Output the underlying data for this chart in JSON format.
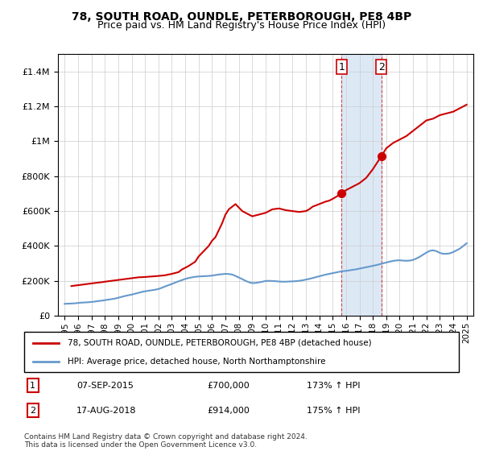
{
  "title": "78, SOUTH ROAD, OUNDLE, PETERBOROUGH, PE8 4BP",
  "subtitle": "Price paid vs. HM Land Registry's House Price Index (HPI)",
  "legend_line1": "78, SOUTH ROAD, OUNDLE, PETERBOROUGH, PE8 4BP (detached house)",
  "legend_line2": "HPI: Average price, detached house, North Northamptonshire",
  "table_rows": [
    [
      "1",
      "07-SEP-2015",
      "£700,000",
      "173% ↑ HPI"
    ],
    [
      "2",
      "17-AUG-2018",
      "£914,000",
      "175% ↑ HPI"
    ]
  ],
  "footer": "Contains HM Land Registry data © Crown copyright and database right 2024.\nThis data is licensed under the Open Government Licence v3.0.",
  "hpi_color": "#6699cc",
  "price_color": "#cc0000",
  "highlight_color": "#dce9f5",
  "dot_color": "#cc0000",
  "marker1_x": 2015.67,
  "marker2_x": 2018.63,
  "marker1_y": 700000,
  "marker2_y": 914000,
  "shade_x1": 2015.67,
  "shade_x2": 2018.63,
  "ylim": [
    0,
    1500000
  ],
  "xlim": [
    1994.5,
    2025.5
  ],
  "yticks": [
    0,
    200000,
    400000,
    600000,
    800000,
    1000000,
    1200000,
    1400000
  ],
  "xticks": [
    1995,
    1996,
    1997,
    1998,
    1999,
    2000,
    2001,
    2002,
    2003,
    2004,
    2005,
    2006,
    2007,
    2008,
    2009,
    2010,
    2011,
    2012,
    2013,
    2014,
    2015,
    2016,
    2017,
    2018,
    2019,
    2020,
    2021,
    2022,
    2023,
    2024,
    2025
  ],
  "hpi_x": [
    1995,
    1995.25,
    1995.5,
    1995.75,
    1996,
    1996.25,
    1996.5,
    1996.75,
    1997,
    1997.25,
    1997.5,
    1997.75,
    1998,
    1998.25,
    1998.5,
    1998.75,
    1999,
    1999.25,
    1999.5,
    1999.75,
    2000,
    2000.25,
    2000.5,
    2000.75,
    2001,
    2001.25,
    2001.5,
    2001.75,
    2002,
    2002.25,
    2002.5,
    2002.75,
    2003,
    2003.25,
    2003.5,
    2003.75,
    2004,
    2004.25,
    2004.5,
    2004.75,
    2005,
    2005.25,
    2005.5,
    2005.75,
    2006,
    2006.25,
    2006.5,
    2006.75,
    2007,
    2007.25,
    2007.5,
    2007.75,
    2008,
    2008.25,
    2008.5,
    2008.75,
    2009,
    2009.25,
    2009.5,
    2009.75,
    2010,
    2010.25,
    2010.5,
    2010.75,
    2011,
    2011.25,
    2011.5,
    2011.75,
    2012,
    2012.25,
    2012.5,
    2012.75,
    2013,
    2013.25,
    2013.5,
    2013.75,
    2014,
    2014.25,
    2014.5,
    2014.75,
    2015,
    2015.25,
    2015.5,
    2015.75,
    2016,
    2016.25,
    2016.5,
    2016.75,
    2017,
    2017.25,
    2017.5,
    2017.75,
    2018,
    2018.25,
    2018.5,
    2018.75,
    2019,
    2019.25,
    2019.5,
    2019.75,
    2020,
    2020.25,
    2020.5,
    2020.75,
    2021,
    2021.25,
    2021.5,
    2021.75,
    2022,
    2022.25,
    2022.5,
    2022.75,
    2023,
    2023.25,
    2023.5,
    2023.75,
    2024,
    2024.25,
    2024.5,
    2024.75,
    2025
  ],
  "hpi_y": [
    68000,
    69000,
    70000,
    71000,
    73000,
    75000,
    76000,
    77000,
    79000,
    81000,
    84000,
    86000,
    89000,
    92000,
    95000,
    98000,
    103000,
    108000,
    113000,
    117000,
    121000,
    126000,
    131000,
    136000,
    140000,
    143000,
    146000,
    149000,
    153000,
    160000,
    168000,
    175000,
    182000,
    190000,
    197000,
    204000,
    211000,
    216000,
    220000,
    223000,
    225000,
    226000,
    227000,
    228000,
    230000,
    233000,
    236000,
    238000,
    240000,
    239000,
    236000,
    228000,
    219000,
    210000,
    200000,
    192000,
    187000,
    188000,
    191000,
    195000,
    199000,
    200000,
    199000,
    198000,
    196000,
    195000,
    195000,
    196000,
    197000,
    198000,
    200000,
    203000,
    207000,
    211000,
    216000,
    221000,
    226000,
    231000,
    236000,
    240000,
    244000,
    248000,
    252000,
    255000,
    257000,
    260000,
    263000,
    266000,
    270000,
    274000,
    278000,
    282000,
    286000,
    290000,
    295000,
    300000,
    305000,
    310000,
    314000,
    317000,
    318000,
    316000,
    315000,
    316000,
    320000,
    328000,
    338000,
    350000,
    362000,
    372000,
    375000,
    370000,
    360000,
    355000,
    355000,
    358000,
    365000,
    375000,
    385000,
    400000,
    415000
  ],
  "price_x": [
    1995.5,
    1996.0,
    1996.5,
    1997.0,
    1997.3,
    1997.75,
    1998.0,
    1998.5,
    1999.0,
    1999.5,
    2000.0,
    2000.5,
    2001.0,
    2001.5,
    2002.0,
    2002.5,
    2003.0,
    2003.5,
    2003.75,
    2004.0,
    2004.25,
    2004.75,
    2005.0,
    2005.25,
    2005.5,
    2005.75,
    2006.0,
    2006.25,
    2006.5,
    2006.75,
    2007.0,
    2007.25,
    2007.75,
    2008.0,
    2008.25,
    2009.0,
    2009.5,
    2010.0,
    2010.25,
    2010.5,
    2011.0,
    2011.5,
    2012.0,
    2012.5,
    2013.0,
    2013.25,
    2013.5,
    2014.0,
    2014.5,
    2014.75,
    2015.0,
    2015.67,
    2016.0,
    2016.5,
    2017.0,
    2017.5,
    2018.0,
    2018.63,
    2019.0,
    2019.5,
    2020.0,
    2020.5,
    2021.0,
    2021.5,
    2022.0,
    2022.5,
    2023.0,
    2023.5,
    2024.0,
    2024.5,
    2025.0
  ],
  "price_y": [
    170000,
    175000,
    180000,
    185000,
    188000,
    192000,
    195000,
    200000,
    205000,
    210000,
    215000,
    220000,
    222000,
    225000,
    228000,
    232000,
    240000,
    250000,
    265000,
    275000,
    285000,
    310000,
    340000,
    360000,
    380000,
    400000,
    430000,
    450000,
    490000,
    530000,
    580000,
    610000,
    640000,
    620000,
    600000,
    570000,
    580000,
    590000,
    600000,
    610000,
    615000,
    605000,
    600000,
    595000,
    600000,
    610000,
    625000,
    640000,
    655000,
    660000,
    670000,
    700000,
    720000,
    740000,
    760000,
    790000,
    840000,
    914000,
    960000,
    990000,
    1010000,
    1030000,
    1060000,
    1090000,
    1120000,
    1130000,
    1150000,
    1160000,
    1170000,
    1190000,
    1210000
  ]
}
